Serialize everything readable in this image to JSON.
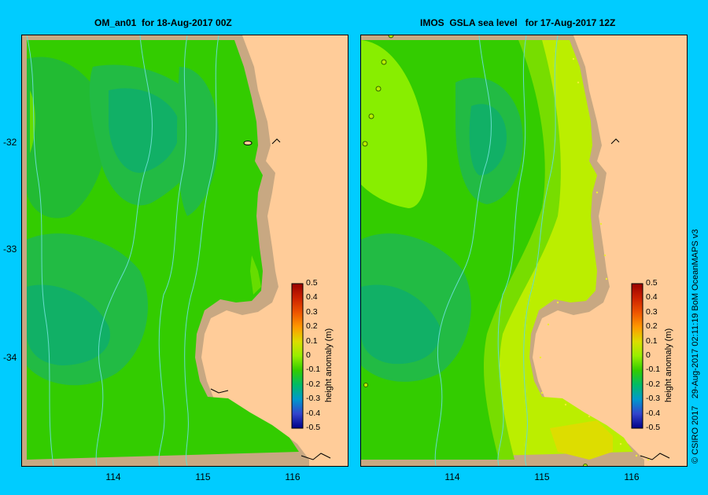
{
  "left_panel": {
    "title": "OM_an01  for 18-Aug-2017 00Z"
  },
  "right_panel": {
    "title": "IMOS  GSLA sea level   for 17-Aug-2017 12Z"
  },
  "axes": {
    "y_ticks": [
      "-32",
      "-33",
      "-34"
    ],
    "x_ticks": [
      "114",
      "115",
      "116"
    ]
  },
  "colorbar": {
    "title": "height anomaly (m)",
    "ticks": [
      "0.5",
      "0.4",
      "0.3",
      "0.2",
      "0.1",
      "0",
      "-0.1",
      "-0.2",
      "-0.3",
      "-0.4",
      "-0.5"
    ],
    "colors": [
      "#990000",
      "#cc2200",
      "#ee5500",
      "#ff9900",
      "#dddd00",
      "#99ee00",
      "#33cc00",
      "#00bb66",
      "#0099cc",
      "#3344cc",
      "#000088"
    ]
  },
  "credit": "© CSIRO 2017   29-Aug-2017 02:11:19 BoM OceanMAPS v3",
  "colors": {
    "background": "#00ccff",
    "land": "#ffcc99",
    "shelf": "#c8a882",
    "isobath": "#66ddcc"
  }
}
